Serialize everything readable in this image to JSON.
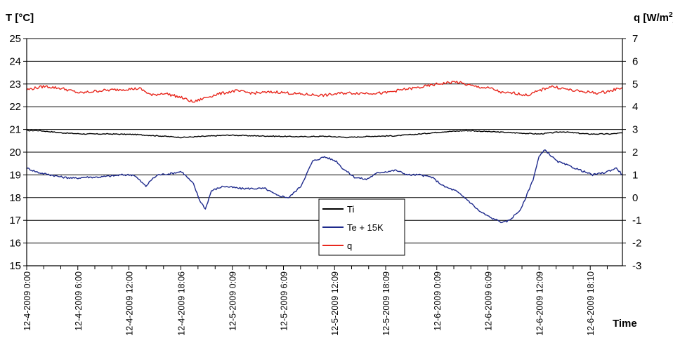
{
  "chart_data": {
    "type": "line",
    "y_left_label": "T [°C]",
    "y_right_label_main": "q [W/m",
    "y_right_label_sup": "2",
    "y_right_label_end": "]",
    "xlabel": "Time",
    "y_left_range": [
      15,
      25
    ],
    "y_right_range": [
      -3,
      7
    ],
    "y_left_ticks": [
      "15",
      "16",
      "17",
      "18",
      "19",
      "20",
      "21",
      "22",
      "23",
      "24",
      "25"
    ],
    "y_right_ticks": [
      "-3",
      "-2",
      "-1",
      "0",
      "1",
      "2",
      "3",
      "4",
      "5",
      "6",
      "7"
    ],
    "x_range": [
      0,
      1
    ],
    "x_ticks": [
      {
        "label": "12-4-2009 0:00",
        "x": 0.0
      },
      {
        "label": "12-4-2009 6:00",
        "x": 0.0858
      },
      {
        "label": "12-4-2009 12:00",
        "x": 0.1716
      },
      {
        "label": "12-4-2009 18:06",
        "x": 0.2587
      },
      {
        "label": "12-5-2009 0:09",
        "x": 0.3452
      },
      {
        "label": "12-5-2009 6:09",
        "x": 0.431
      },
      {
        "label": "12-5-2009 12:09",
        "x": 0.5168
      },
      {
        "label": "12-5-2009 18:09",
        "x": 0.6026
      },
      {
        "label": "12-6-2009 0:09",
        "x": 0.6884
      },
      {
        "label": "12-6-2009 6:09",
        "x": 0.7742
      },
      {
        "label": "12-6-2009 12:09",
        "x": 0.86
      },
      {
        "label": "12-6-2009 18:10",
        "x": 0.946
      }
    ],
    "gridlines": "horizontal",
    "legend_position": "lower-center",
    "series": [
      {
        "name": "Ti",
        "axis": "left",
        "color": "#000000",
        "x": [
          0.0,
          0.02,
          0.04,
          0.06,
          0.08,
          0.1,
          0.14,
          0.18,
          0.2,
          0.22,
          0.26,
          0.3,
          0.34,
          0.38,
          0.42,
          0.46,
          0.5,
          0.54,
          0.58,
          0.62,
          0.66,
          0.7,
          0.74,
          0.78,
          0.82,
          0.86,
          0.9,
          0.94,
          0.98,
          1.0
        ],
        "y": [
          20.95,
          20.95,
          20.9,
          20.85,
          20.82,
          20.8,
          20.8,
          20.78,
          20.75,
          20.72,
          20.65,
          20.7,
          20.75,
          20.72,
          20.7,
          20.68,
          20.7,
          20.65,
          20.7,
          20.72,
          20.8,
          20.9,
          20.95,
          20.9,
          20.85,
          20.8,
          20.9,
          20.8,
          20.8,
          20.85
        ]
      },
      {
        "name": "Te + 15K",
        "axis": "left",
        "color": "#1e2a8c",
        "x": [
          0.0,
          0.02,
          0.04,
          0.06,
          0.08,
          0.1,
          0.12,
          0.14,
          0.16,
          0.18,
          0.2,
          0.21,
          0.22,
          0.24,
          0.26,
          0.28,
          0.29,
          0.3,
          0.31,
          0.33,
          0.36,
          0.4,
          0.42,
          0.44,
          0.46,
          0.48,
          0.5,
          0.52,
          0.53,
          0.55,
          0.57,
          0.59,
          0.62,
          0.64,
          0.66,
          0.68,
          0.7,
          0.72,
          0.74,
          0.76,
          0.78,
          0.8,
          0.81,
          0.83,
          0.85,
          0.86,
          0.87,
          0.89,
          0.92,
          0.95,
          0.97,
          0.99,
          1.0
        ],
        "y": [
          19.3,
          19.1,
          19.0,
          18.9,
          18.85,
          18.9,
          18.9,
          18.95,
          19.0,
          19.0,
          18.5,
          18.8,
          19.0,
          19.05,
          19.15,
          18.6,
          17.9,
          17.5,
          18.3,
          18.5,
          18.4,
          18.4,
          18.1,
          18.0,
          18.5,
          19.6,
          19.8,
          19.6,
          19.3,
          18.9,
          18.8,
          19.1,
          19.2,
          19.0,
          19.0,
          18.9,
          18.5,
          18.3,
          17.9,
          17.4,
          17.1,
          16.9,
          17.0,
          17.5,
          18.8,
          19.8,
          20.1,
          19.6,
          19.3,
          19.0,
          19.1,
          19.3,
          19.0
        ]
      },
      {
        "name": "q",
        "axis": "right",
        "color": "#e8281e",
        "x": [
          0.0,
          0.03,
          0.06,
          0.09,
          0.12,
          0.15,
          0.19,
          0.21,
          0.23,
          0.26,
          0.28,
          0.3,
          0.32,
          0.35,
          0.38,
          0.42,
          0.46,
          0.5,
          0.53,
          0.57,
          0.6,
          0.63,
          0.66,
          0.69,
          0.72,
          0.75,
          0.78,
          0.8,
          0.82,
          0.84,
          0.86,
          0.88,
          0.9,
          0.92,
          0.94,
          0.96,
          0.98,
          1.0
        ],
        "y": [
          4.75,
          4.9,
          4.8,
          4.6,
          4.7,
          4.75,
          4.8,
          4.5,
          4.6,
          4.4,
          4.2,
          4.4,
          4.55,
          4.7,
          4.6,
          4.65,
          4.55,
          4.5,
          4.6,
          4.6,
          4.6,
          4.75,
          4.85,
          5.0,
          5.1,
          4.9,
          4.8,
          4.6,
          4.6,
          4.5,
          4.7,
          4.9,
          4.8,
          4.7,
          4.65,
          4.6,
          4.7,
          4.85
        ]
      }
    ]
  }
}
